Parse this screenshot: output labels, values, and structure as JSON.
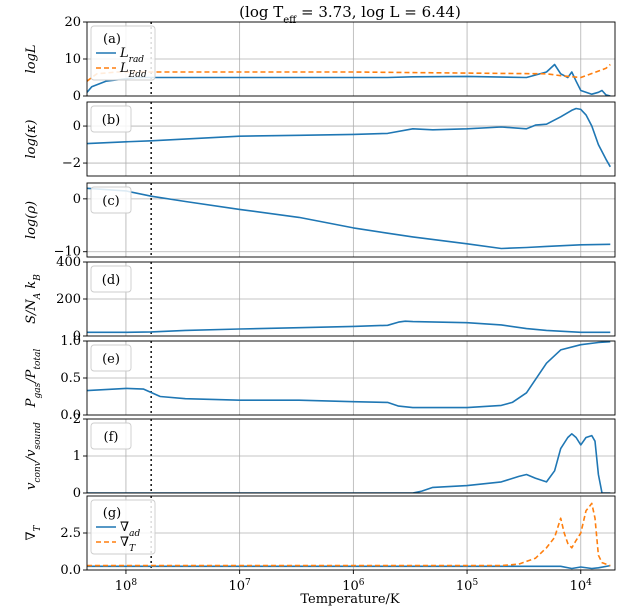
{
  "colors": {
    "blue": "#1f77b4",
    "orange": "#ff7f0e"
  },
  "chart_data": {
    "type": "line",
    "title": "(log T",
    "title_sub": "eff",
    "title_rest": " = 3.73, log L = 6.44)",
    "xlabel": "Temperature/K",
    "x_scale": "log-reversed",
    "xlim": [
      220000000,
      5000
    ],
    "x_ticks": [
      {
        "value": 100000000,
        "base": "10",
        "exp": "8"
      },
      {
        "value": 10000000,
        "base": "10",
        "exp": "7"
      },
      {
        "value": 1000000,
        "base": "10",
        "exp": "6"
      },
      {
        "value": 100000,
        "base": "10",
        "exp": "5"
      },
      {
        "value": 10000,
        "base": "10",
        "exp": "4"
      }
    ],
    "vline_x": 60000000,
    "grid": true,
    "panels": [
      {
        "letter": "(a)",
        "ylabel": "logL",
        "ylim": [
          0,
          20
        ],
        "yticks": [
          {
            "v": 0,
            "label": "0"
          },
          {
            "v": 10,
            "label": "10"
          },
          {
            "v": 20,
            "label": "20"
          }
        ],
        "legend": [
          {
            "base": "L",
            "sub": "rad",
            "color": "blue",
            "dash": false
          },
          {
            "base": "L",
            "sub": "Edd",
            "color": "orange",
            "dash": true
          }
        ],
        "series": [
          {
            "name": "L_rad",
            "color": "blue",
            "dash": false,
            "x": [
              220000000,
              200000000,
              150000000,
              80000000,
              30000000,
              3000000,
              1000000,
              500000,
              300000,
              100000,
              30000,
              20000,
              17000,
              15000,
              13000,
              12000,
              11000,
              10000,
              8000,
              7000,
              6500,
              6000,
              5500
            ],
            "y": [
              1,
              2.5,
              4,
              5,
              5,
              5,
              5,
              5,
              5.2,
              5.3,
              5,
              6.5,
              8.5,
              6,
              5,
              6.5,
              4,
              1.5,
              0.5,
              1,
              1.5,
              0.3,
              0
            ]
          },
          {
            "name": "L_Edd",
            "color": "orange",
            "dash": true,
            "x": [
              220000000,
              200000000,
              180000000,
              120000000,
              60000000,
              1000000,
              100000,
              20000,
              15000,
              10000,
              6000,
              5500
            ],
            "y": [
              4,
              5,
              6,
              6.5,
              6.5,
              6.5,
              6.2,
              6,
              5.5,
              5,
              7.5,
              8.5
            ]
          }
        ]
      },
      {
        "letter": "(b)",
        "ylabel": "log(κ)",
        "ylim": [
          -2.7,
          1.3
        ],
        "yticks": [
          {
            "v": -2,
            "label": "−2"
          },
          {
            "v": 0,
            "label": "0"
          }
        ],
        "series": [
          {
            "name": "log_kappa",
            "color": "blue",
            "dash": false,
            "x": [
              220000000,
              100000000,
              60000000,
              10000000,
              3000000,
              1000000,
              500000,
              300000,
              200000,
              100000,
              50000,
              30000,
              25000,
              20000,
              15000,
              12000,
              11000,
              10000,
              9000,
              8000,
              7000,
              6000,
              5500
            ],
            "y": [
              -0.95,
              -0.85,
              -0.8,
              -0.55,
              -0.5,
              -0.45,
              -0.4,
              -0.15,
              -0.2,
              -0.15,
              -0.05,
              -0.15,
              0.05,
              0.1,
              0.5,
              0.85,
              0.95,
              0.9,
              0.6,
              0,
              -1,
              -1.8,
              -2.2
            ]
          }
        ]
      },
      {
        "letter": "(c)",
        "ylabel": "log(ρ)",
        "ylim": [
          -11,
          3
        ],
        "yticks": [
          {
            "v": -10,
            "label": "−10"
          },
          {
            "v": 0,
            "label": "0"
          }
        ],
        "series": [
          {
            "name": "log_rho",
            "color": "blue",
            "dash": false,
            "x": [
              220000000,
              100000000,
              60000000,
              30000000,
              10000000,
              3000000,
              1000000,
              500000,
              300000,
              100000,
              50000,
              30000,
              20000,
              10000,
              5500
            ],
            "y": [
              2,
              1.5,
              0.5,
              -0.5,
              -2,
              -3.5,
              -5.5,
              -6.5,
              -7.2,
              -8.5,
              -9.4,
              -9.2,
              -9,
              -8.7,
              -8.6
            ]
          }
        ]
      },
      {
        "letter": "(d)",
        "ylabel": "S/N_A k_B",
        "ylim": [
          0,
          400
        ],
        "yticks": [
          {
            "v": 0,
            "label": "0"
          },
          {
            "v": 200,
            "label": "200"
          },
          {
            "v": 400,
            "label": "400"
          }
        ],
        "series": [
          {
            "name": "entropy",
            "color": "blue",
            "dash": false,
            "x": [
              220000000,
              100000000,
              60000000,
              30000000,
              10000000,
              3000000,
              1000000,
              500000,
              400000,
              350000,
              300000,
              100000,
              50000,
              30000,
              20000,
              10000,
              5500
            ],
            "y": [
              20,
              20,
              22,
              30,
              38,
              45,
              52,
              58,
              75,
              80,
              78,
              72,
              60,
              40,
              30,
              20,
              20
            ]
          }
        ]
      },
      {
        "letter": "(e)",
        "ylabel": "P_gas/P_total",
        "ylim": [
          0,
          1
        ],
        "yticks": [
          {
            "v": 0,
            "label": "0.0"
          },
          {
            "v": 0.5,
            "label": "0.5"
          },
          {
            "v": 1,
            "label": "1.0"
          }
        ],
        "series": [
          {
            "name": "beta",
            "color": "blue",
            "dash": false,
            "x": [
              220000000,
              100000000,
              70000000,
              50000000,
              30000000,
              10000000,
              3000000,
              1000000,
              500000,
              400000,
              300000,
              100000,
              50000,
              40000,
              30000,
              20000,
              15000,
              10000,
              7000,
              5500
            ],
            "y": [
              0.33,
              0.36,
              0.35,
              0.25,
              0.22,
              0.2,
              0.2,
              0.18,
              0.17,
              0.12,
              0.1,
              0.1,
              0.13,
              0.17,
              0.3,
              0.7,
              0.88,
              0.95,
              0.98,
              0.99
            ]
          }
        ]
      },
      {
        "letter": "(f)",
        "ylabel": "v_conv/v_sound",
        "ylim": [
          0,
          2
        ],
        "yticks": [
          {
            "v": 0,
            "label": "0"
          },
          {
            "v": 1,
            "label": "1"
          },
          {
            "v": 2,
            "label": "2"
          }
        ],
        "series": [
          {
            "name": "mach",
            "color": "blue",
            "dash": false,
            "x": [
              220000000,
              300000,
              250000,
              200000,
              100000,
              50000,
              35000,
              30000,
              25000,
              20000,
              17000,
              15000,
              13000,
              12000,
              11000,
              10000,
              9000,
              8000,
              7500,
              7000,
              6500,
              5500
            ],
            "y": [
              0,
              0,
              0.05,
              0.15,
              0.2,
              0.3,
              0.45,
              0.5,
              0.4,
              0.3,
              0.6,
              1.2,
              1.5,
              1.6,
              1.5,
              1.3,
              1.5,
              1.55,
              1.4,
              0.5,
              0,
              0
            ]
          }
        ]
      },
      {
        "letter": "(g)",
        "ylabel": "∇_T",
        "ylim": [
          0,
          5
        ],
        "yticks": [
          {
            "v": 0,
            "label": "0.0"
          },
          {
            "v": 2.5,
            "label": "2.5"
          }
        ],
        "legend": [
          {
            "base": "∇",
            "sub": "ad",
            "color": "blue",
            "dash": false
          },
          {
            "base": "∇",
            "sub": "T",
            "color": "orange",
            "dash": true
          }
        ],
        "series": [
          {
            "name": "nabla_ad",
            "color": "blue",
            "dash": false,
            "x": [
              220000000,
              30000,
              15000,
              12000,
              10000,
              8000,
              7000,
              5500
            ],
            "y": [
              0.25,
              0.25,
              0.25,
              0.1,
              0.2,
              0.1,
              0.15,
              0.3
            ]
          },
          {
            "name": "nabla_T",
            "color": "orange",
            "dash": true,
            "x": [
              220000000,
              50000,
              35000,
              25000,
              20000,
              17000,
              15000,
              14000,
              13000,
              12000,
              11000,
              10000,
              9000,
              8000,
              7500,
              7000,
              6500,
              6000,
              5500
            ],
            "y": [
              0.3,
              0.3,
              0.4,
              0.8,
              1.5,
              2.2,
              3.5,
              2.5,
              1.8,
              1.5,
              2.0,
              2.5,
              4.0,
              4.5,
              3.5,
              1.0,
              0.5,
              0.4,
              0.3
            ]
          }
        ]
      }
    ]
  }
}
